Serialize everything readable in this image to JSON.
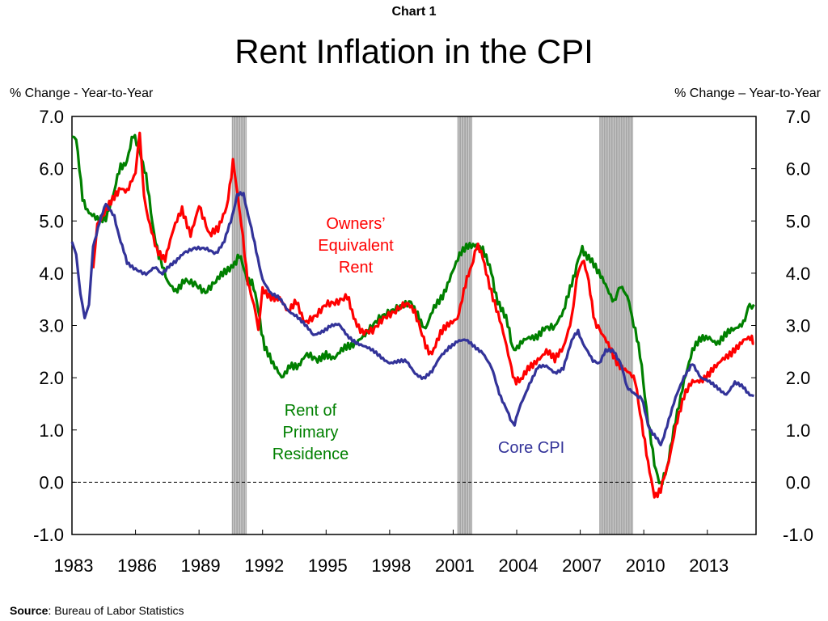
{
  "header_small": "Chart 1",
  "title": "Rent Inflation in the CPI",
  "left_axis_title": "% Change - Year-to-Year",
  "right_axis_title": "% Change – Year-to-Year",
  "source_label": "Source",
  "source_text": ": Bureau of Labor Statistics",
  "colors": {
    "oer": "#ff0000",
    "rent": "#008000",
    "core": "#333399",
    "recession": "#a6a6a6"
  },
  "chart_data": {
    "type": "line",
    "title": "Rent Inflation in the CPI",
    "ylabel_left": "% Change - Year-to-Year",
    "ylabel_right": "% Change – Year-to-Year",
    "xlim": [
      1983,
      2015.3
    ],
    "ylim": [
      -1.0,
      7.0
    ],
    "x_ticks": [
      1983,
      1986,
      1989,
      1992,
      1995,
      1998,
      2001,
      2004,
      2007,
      2010,
      2013
    ],
    "y_ticks": [
      "-1.0",
      "0.0",
      "1.0",
      "2.0",
      "3.0",
      "4.0",
      "5.0",
      "6.0",
      "7.0"
    ],
    "y_tick_values": [
      -1,
      0,
      1,
      2,
      3,
      4,
      5,
      6,
      7
    ],
    "zero_line": "dashed",
    "recessions": [
      [
        1990.55,
        1991.25
      ],
      [
        2001.2,
        2001.9
      ],
      [
        2007.9,
        2009.5
      ]
    ],
    "series": [
      {
        "name": "Owners’ Equivalent Rent",
        "label_lines": [
          "Owners’",
          "Equivalent",
          "Rent"
        ],
        "color_key": "oer",
        "points": [
          [
            1984.0,
            4.1
          ],
          [
            1984.2,
            5.0
          ],
          [
            1984.6,
            5.2
          ],
          [
            1985.0,
            5.4
          ],
          [
            1985.3,
            5.7
          ],
          [
            1985.6,
            5.5
          ],
          [
            1986.0,
            5.9
          ],
          [
            1986.2,
            6.7
          ],
          [
            1986.4,
            5.6
          ],
          [
            1986.6,
            5.0
          ],
          [
            1987.0,
            4.5
          ],
          [
            1987.4,
            4.3
          ],
          [
            1987.8,
            4.8
          ],
          [
            1988.2,
            5.2
          ],
          [
            1988.6,
            4.8
          ],
          [
            1989.0,
            5.3
          ],
          [
            1989.5,
            4.7
          ],
          [
            1989.9,
            4.8
          ],
          [
            1990.3,
            5.3
          ],
          [
            1990.6,
            6.1
          ],
          [
            1990.8,
            5.6
          ],
          [
            1991.0,
            4.9
          ],
          [
            1991.3,
            3.9
          ],
          [
            1991.6,
            3.3
          ],
          [
            1991.8,
            2.9
          ],
          [
            1992.0,
            3.7
          ],
          [
            1992.4,
            3.6
          ],
          [
            1992.8,
            3.5
          ],
          [
            1993.2,
            3.2
          ],
          [
            1993.6,
            3.5
          ],
          [
            1994.0,
            3.1
          ],
          [
            1994.5,
            3.2
          ],
          [
            1995.0,
            3.4
          ],
          [
            1995.5,
            3.4
          ],
          [
            1996.0,
            3.5
          ],
          [
            1996.3,
            3.2
          ],
          [
            1996.7,
            2.9
          ],
          [
            1997.2,
            2.9
          ],
          [
            1997.7,
            3.1
          ],
          [
            1998.2,
            3.2
          ],
          [
            1998.8,
            3.4
          ],
          [
            1999.2,
            3.2
          ],
          [
            1999.7,
            2.6
          ],
          [
            2000.0,
            2.5
          ],
          [
            2000.4,
            2.8
          ],
          [
            2000.8,
            3.0
          ],
          [
            2001.2,
            3.2
          ],
          [
            2001.5,
            3.6
          ],
          [
            2001.8,
            4.1
          ],
          [
            2002.1,
            4.5
          ],
          [
            2002.4,
            4.3
          ],
          [
            2002.8,
            3.7
          ],
          [
            2003.2,
            3.1
          ],
          [
            2003.6,
            2.4
          ],
          [
            2003.9,
            2.0
          ],
          [
            2004.2,
            1.9
          ],
          [
            2004.6,
            2.2
          ],
          [
            2005.0,
            2.4
          ],
          [
            2005.4,
            2.5
          ],
          [
            2005.8,
            2.3
          ],
          [
            2006.2,
            2.6
          ],
          [
            2006.6,
            3.2
          ],
          [
            2006.9,
            4.0
          ],
          [
            2007.1,
            4.3
          ],
          [
            2007.4,
            3.8
          ],
          [
            2007.7,
            3.1
          ],
          [
            2008.0,
            2.8
          ],
          [
            2008.4,
            2.6
          ],
          [
            2008.8,
            2.3
          ],
          [
            2009.2,
            2.1
          ],
          [
            2009.6,
            1.9
          ],
          [
            2009.9,
            1.2
          ],
          [
            2010.2,
            0.3
          ],
          [
            2010.5,
            -0.2
          ],
          [
            2010.8,
            -0.2
          ],
          [
            2011.1,
            0.3
          ],
          [
            2011.5,
            1.1
          ],
          [
            2011.9,
            1.6
          ],
          [
            2012.3,
            1.9
          ],
          [
            2012.7,
            2.0
          ],
          [
            2013.1,
            2.1
          ],
          [
            2013.5,
            2.2
          ],
          [
            2013.9,
            2.4
          ],
          [
            2014.3,
            2.6
          ],
          [
            2014.7,
            2.7
          ],
          [
            2015.1,
            2.7
          ],
          [
            2015.2,
            2.65
          ]
        ]
      },
      {
        "name": "Rent of Primary Residence",
        "label_lines": [
          "Rent of",
          "Primary",
          "Residence"
        ],
        "color_key": "rent",
        "points": [
          [
            1983.0,
            6.6
          ],
          [
            1983.2,
            6.5
          ],
          [
            1983.5,
            5.5
          ],
          [
            1983.8,
            5.1
          ],
          [
            1984.2,
            5.0
          ],
          [
            1984.6,
            5.1
          ],
          [
            1985.0,
            5.6
          ],
          [
            1985.3,
            6.0
          ],
          [
            1985.6,
            6.2
          ],
          [
            1985.9,
            6.6
          ],
          [
            1986.2,
            6.4
          ],
          [
            1986.5,
            5.8
          ],
          [
            1986.8,
            5.0
          ],
          [
            1987.1,
            4.3
          ],
          [
            1987.5,
            3.8
          ],
          [
            1987.9,
            3.7
          ],
          [
            1988.3,
            3.9
          ],
          [
            1988.8,
            3.8
          ],
          [
            1989.3,
            3.6
          ],
          [
            1989.8,
            3.8
          ],
          [
            1990.2,
            4.0
          ],
          [
            1990.6,
            4.2
          ],
          [
            1990.9,
            4.3
          ],
          [
            1991.2,
            4.0
          ],
          [
            1991.5,
            3.8
          ],
          [
            1991.8,
            3.3
          ],
          [
            1992.1,
            2.6
          ],
          [
            1992.5,
            2.2
          ],
          [
            1992.9,
            2.0
          ],
          [
            1993.3,
            2.3
          ],
          [
            1993.7,
            2.2
          ],
          [
            1994.1,
            2.4
          ],
          [
            1994.6,
            2.3
          ],
          [
            1995.0,
            2.5
          ],
          [
            1995.4,
            2.4
          ],
          [
            1995.8,
            2.5
          ],
          [
            1996.2,
            2.6
          ],
          [
            1996.6,
            2.8
          ],
          [
            1997.0,
            2.9
          ],
          [
            1997.5,
            3.1
          ],
          [
            1998.0,
            3.2
          ],
          [
            1998.5,
            3.3
          ],
          [
            1999.0,
            3.4
          ],
          [
            1999.4,
            3.2
          ],
          [
            1999.7,
            2.9
          ],
          [
            2000.1,
            3.3
          ],
          [
            2000.5,
            3.6
          ],
          [
            2000.9,
            4.0
          ],
          [
            2001.3,
            4.3
          ],
          [
            2001.7,
            4.5
          ],
          [
            2002.1,
            4.6
          ],
          [
            2002.4,
            4.4
          ],
          [
            2002.8,
            4.0
          ],
          [
            2003.1,
            3.5
          ],
          [
            2003.5,
            3.1
          ],
          [
            2003.8,
            2.6
          ],
          [
            2004.1,
            2.6
          ],
          [
            2004.5,
            2.7
          ],
          [
            2004.9,
            2.8
          ],
          [
            2005.3,
            3.0
          ],
          [
            2005.8,
            3.0
          ],
          [
            2006.2,
            3.2
          ],
          [
            2006.6,
            3.8
          ],
          [
            2006.9,
            4.3
          ],
          [
            2007.1,
            4.5
          ],
          [
            2007.4,
            4.3
          ],
          [
            2007.8,
            4.0
          ],
          [
            2008.2,
            3.8
          ],
          [
            2008.6,
            3.5
          ],
          [
            2008.9,
            3.7
          ],
          [
            2009.3,
            3.5
          ],
          [
            2009.6,
            2.9
          ],
          [
            2009.9,
            2.2
          ],
          [
            2010.2,
            1.2
          ],
          [
            2010.5,
            0.3
          ],
          [
            2010.8,
            0.0
          ],
          [
            2011.1,
            0.2
          ],
          [
            2011.5,
            1.2
          ],
          [
            2011.9,
            2.0
          ],
          [
            2012.3,
            2.5
          ],
          [
            2012.7,
            2.7
          ],
          [
            2013.1,
            2.8
          ],
          [
            2013.5,
            2.7
          ],
          [
            2013.9,
            2.8
          ],
          [
            2014.3,
            2.9
          ],
          [
            2014.7,
            3.1
          ],
          [
            2015.0,
            3.4
          ],
          [
            2015.2,
            3.4
          ]
        ]
      },
      {
        "name": "Core CPI",
        "label_lines": [
          "Core CPI"
        ],
        "color_key": "core",
        "points": [
          [
            1983.0,
            4.6
          ],
          [
            1983.2,
            4.4
          ],
          [
            1983.4,
            3.6
          ],
          [
            1983.6,
            3.1
          ],
          [
            1983.8,
            3.4
          ],
          [
            1984.0,
            4.5
          ],
          [
            1984.3,
            5.0
          ],
          [
            1984.6,
            5.3
          ],
          [
            1985.0,
            5.1
          ],
          [
            1985.3,
            4.6
          ],
          [
            1985.6,
            4.2
          ],
          [
            1986.0,
            4.1
          ],
          [
            1986.5,
            4.0
          ],
          [
            1986.9,
            4.1
          ],
          [
            1987.2,
            4.0
          ],
          [
            1987.5,
            4.1
          ],
          [
            1987.9,
            4.2
          ],
          [
            1988.3,
            4.4
          ],
          [
            1988.8,
            4.5
          ],
          [
            1989.3,
            4.5
          ],
          [
            1989.8,
            4.4
          ],
          [
            1990.2,
            4.6
          ],
          [
            1990.5,
            5.0
          ],
          [
            1990.8,
            5.5
          ],
          [
            1991.1,
            5.5
          ],
          [
            1991.4,
            5.0
          ],
          [
            1991.7,
            4.4
          ],
          [
            1992.0,
            3.9
          ],
          [
            1992.4,
            3.6
          ],
          [
            1992.8,
            3.5
          ],
          [
            1993.2,
            3.3
          ],
          [
            1993.6,
            3.2
          ],
          [
            1994.0,
            3.0
          ],
          [
            1994.4,
            2.8
          ],
          [
            1994.8,
            2.9
          ],
          [
            1995.2,
            3.0
          ],
          [
            1995.6,
            3.0
          ],
          [
            1996.0,
            2.8
          ],
          [
            1996.4,
            2.7
          ],
          [
            1996.8,
            2.6
          ],
          [
            1997.2,
            2.5
          ],
          [
            1997.6,
            2.4
          ],
          [
            1998.0,
            2.3
          ],
          [
            1998.4,
            2.3
          ],
          [
            1998.8,
            2.3
          ],
          [
            1999.2,
            2.1
          ],
          [
            1999.6,
            2.0
          ],
          [
            2000.0,
            2.1
          ],
          [
            2000.4,
            2.4
          ],
          [
            2000.8,
            2.6
          ],
          [
            2001.2,
            2.7
          ],
          [
            2001.6,
            2.7
          ],
          [
            2002.0,
            2.6
          ],
          [
            2002.4,
            2.5
          ],
          [
            2002.8,
            2.2
          ],
          [
            2003.1,
            1.8
          ],
          [
            2003.4,
            1.5
          ],
          [
            2003.7,
            1.2
          ],
          [
            2003.9,
            1.1
          ],
          [
            2004.2,
            1.5
          ],
          [
            2004.6,
            1.9
          ],
          [
            2005.0,
            2.2
          ],
          [
            2005.4,
            2.2
          ],
          [
            2005.8,
            2.1
          ],
          [
            2006.2,
            2.2
          ],
          [
            2006.6,
            2.7
          ],
          [
            2006.9,
            2.9
          ],
          [
            2007.2,
            2.6
          ],
          [
            2007.6,
            2.3
          ],
          [
            2007.9,
            2.3
          ],
          [
            2008.2,
            2.5
          ],
          [
            2008.6,
            2.5
          ],
          [
            2008.9,
            2.3
          ],
          [
            2009.2,
            1.8
          ],
          [
            2009.6,
            1.7
          ],
          [
            2009.9,
            1.6
          ],
          [
            2010.2,
            1.1
          ],
          [
            2010.5,
            0.9
          ],
          [
            2010.8,
            0.7
          ],
          [
            2011.1,
            1.1
          ],
          [
            2011.5,
            1.6
          ],
          [
            2011.9,
            2.0
          ],
          [
            2012.3,
            2.3
          ],
          [
            2012.7,
            2.0
          ],
          [
            2013.1,
            1.9
          ],
          [
            2013.5,
            1.8
          ],
          [
            2013.9,
            1.7
          ],
          [
            2014.3,
            1.9
          ],
          [
            2014.7,
            1.8
          ],
          [
            2015.0,
            1.7
          ],
          [
            2015.2,
            1.65
          ]
        ]
      }
    ]
  }
}
